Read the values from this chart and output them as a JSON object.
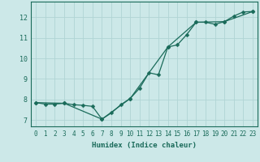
{
  "xlabel": "Humidex (Indice chaleur)",
  "bg_color": "#cce8e8",
  "grid_color": "#b0d4d4",
  "line_color": "#1a6b5a",
  "xlim": [
    -0.5,
    23.5
  ],
  "ylim": [
    6.7,
    12.75
  ],
  "xticks": [
    0,
    1,
    2,
    3,
    4,
    5,
    6,
    7,
    8,
    9,
    10,
    11,
    12,
    13,
    14,
    15,
    16,
    17,
    18,
    19,
    20,
    21,
    22,
    23
  ],
  "yticks": [
    7,
    8,
    9,
    10,
    11,
    12
  ],
  "line1_x": [
    0,
    1,
    2,
    3,
    4,
    5,
    6,
    7,
    8,
    9,
    10,
    11,
    12,
    13,
    14,
    15,
    16,
    17,
    18,
    19,
    20,
    21,
    22,
    23
  ],
  "line1_y": [
    7.85,
    7.78,
    7.78,
    7.82,
    7.75,
    7.72,
    7.67,
    7.05,
    7.35,
    7.75,
    8.05,
    8.55,
    9.3,
    9.2,
    10.55,
    10.65,
    11.15,
    11.75,
    11.75,
    11.65,
    11.78,
    12.05,
    12.25,
    12.27
  ],
  "line2_x": [
    0,
    3,
    7,
    10,
    14,
    17,
    20,
    23
  ],
  "line2_y": [
    7.85,
    7.82,
    7.05,
    8.05,
    10.55,
    11.75,
    11.78,
    12.27
  ],
  "tick_fontsize": 5.5,
  "xlabel_fontsize": 6.5,
  "marker_size": 2.5,
  "line_width": 0.9
}
